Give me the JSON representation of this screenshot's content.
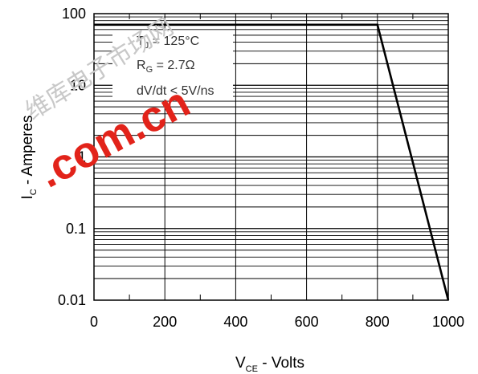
{
  "chart_data": {
    "type": "line",
    "title": "",
    "xlabel": {
      "main": "V",
      "sub": "CE",
      "suffix": " - Volts"
    },
    "ylabel": {
      "main": "I",
      "sub": "C",
      "suffix": " - Amperes"
    },
    "xlim": [
      0,
      1000
    ],
    "ylim": [
      0.01,
      100
    ],
    "yscale": "log",
    "grid": true,
    "x_ticks": [
      0,
      200,
      400,
      600,
      800,
      1000
    ],
    "x_tick_labels": [
      "0",
      "200",
      "400",
      "600",
      "800",
      "1000"
    ],
    "y_ticks": [
      0.01,
      0.1,
      1,
      10,
      100
    ],
    "y_tick_labels": [
      "0.01",
      "0.1",
      "1",
      "10",
      "100"
    ],
    "series": [
      {
        "x": [
          0,
          800,
          1000
        ],
        "y": [
          70,
          70,
          0.01
        ]
      }
    ],
    "annotations": [
      {
        "main": "T",
        "sub": "J",
        "suffix": " = 125°C"
      },
      {
        "main": "R",
        "sub": "G",
        "suffix": " = 2.7Ω"
      },
      {
        "main": "dV/dt < 5V/ns",
        "sub": "",
        "suffix": ""
      }
    ]
  },
  "watermark": {
    "text": ".com.cn",
    "cjk": "维库电子市场网"
  }
}
